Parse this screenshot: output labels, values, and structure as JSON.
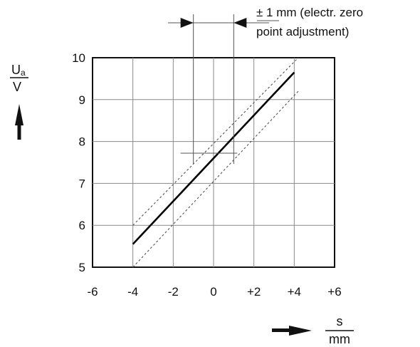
{
  "chart_data": {
    "type": "line",
    "title": "",
    "xlabel": "s/mm",
    "ylabel": "Ua/V",
    "x_unit": {
      "numerator": "s",
      "denominator": "mm"
    },
    "y_unit": {
      "numerator": "U",
      "subscript": "a",
      "denominator": "V"
    },
    "xlim": [
      -6,
      6
    ],
    "ylim": [
      5,
      10
    ],
    "x_ticks": [
      {
        "value": -6,
        "label": "-6"
      },
      {
        "value": -4,
        "label": "-4"
      },
      {
        "value": -2,
        "label": "-2"
      },
      {
        "value": 0,
        "label": "0"
      },
      {
        "value": 2,
        "label": "+2"
      },
      {
        "value": 4,
        "label": "+4"
      },
      {
        "value": 6,
        "label": "+6"
      }
    ],
    "y_ticks": [
      {
        "value": 5,
        "label": "5"
      },
      {
        "value": 6,
        "label": "6"
      },
      {
        "value": 7,
        "label": "7"
      },
      {
        "value": 8,
        "label": "8"
      },
      {
        "value": 9,
        "label": "9"
      },
      {
        "value": 10,
        "label": "10"
      }
    ],
    "grid": true,
    "series": [
      {
        "style": "solid",
        "x": [
          -4,
          4
        ],
        "y": [
          5.55,
          9.65
        ]
      },
      {
        "style": "dashed",
        "x": [
          -4,
          4.2
        ],
        "y": [
          6.0,
          10.0
        ]
      },
      {
        "style": "dashed",
        "x": [
          -4,
          4.2
        ],
        "y": [
          5.0,
          9.2
        ]
      }
    ],
    "annotation": {
      "lines": [
        "± 1 mm (electr. zero",
        "point adjustment)"
      ],
      "range_x": [
        -1,
        1
      ]
    }
  }
}
